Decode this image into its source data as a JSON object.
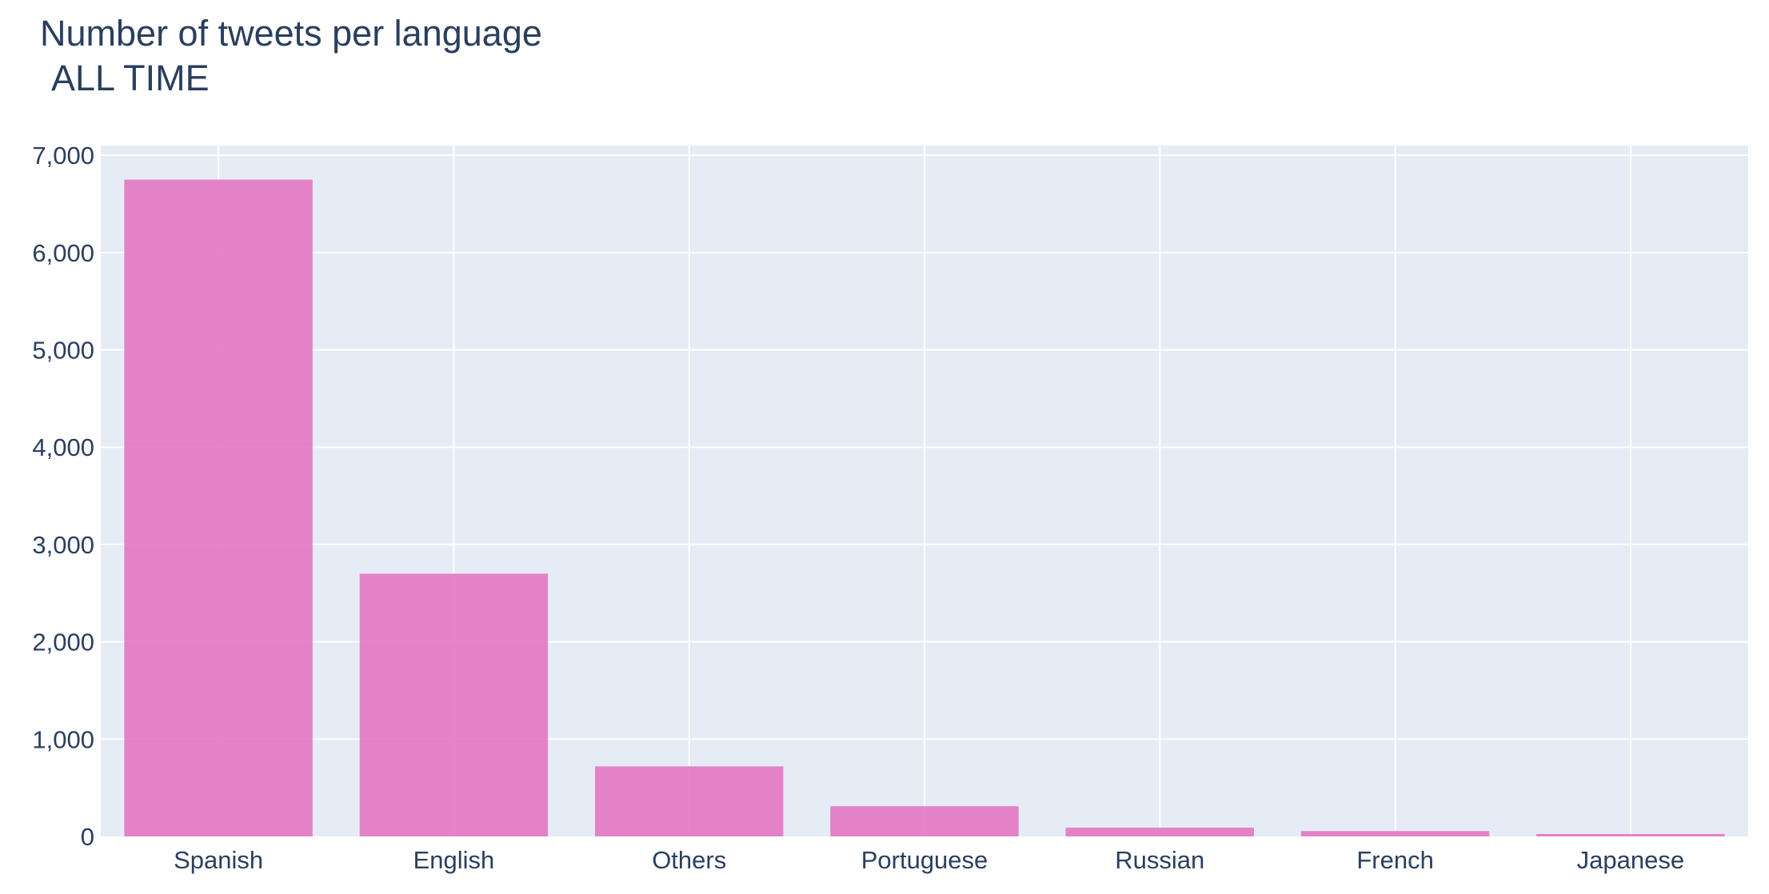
{
  "chart_data": {
    "type": "bar",
    "title_line1": "Number of tweets per language",
    "title_line2": "ALL TIME",
    "xlabel": "",
    "ylabel": "",
    "categories": [
      "Spanish",
      "English",
      "Others",
      "Portuguese",
      "Russian",
      "French",
      "Japanese"
    ],
    "values": [
      6750,
      2700,
      720,
      310,
      90,
      55,
      25
    ],
    "ylim": [
      0,
      7100
    ],
    "yticks": [
      0,
      1000,
      2000,
      3000,
      4000,
      5000,
      6000,
      7000
    ],
    "ytick_labels": [
      "0",
      "1,000",
      "2,000",
      "3,000",
      "4,000",
      "5,000",
      "6,000",
      "7,000"
    ],
    "grid": true,
    "colors": {
      "bar": "#e377c2",
      "plot_bg": "#e5ecf6",
      "grid": "#ffffff",
      "text": "#2a3f5f"
    }
  }
}
